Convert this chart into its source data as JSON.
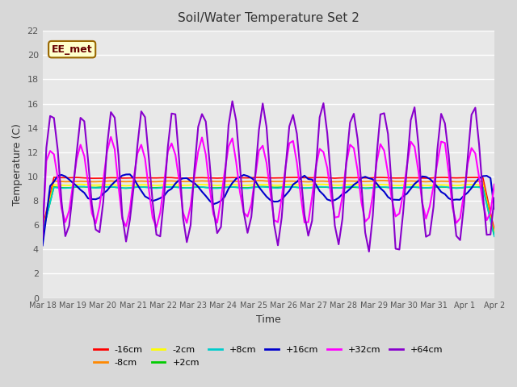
{
  "title": "Soil/Water Temperature Set 2",
  "xlabel": "Time",
  "ylabel": "Temperature (C)",
  "ylim": [
    0,
    22
  ],
  "yticks": [
    0,
    2,
    4,
    6,
    8,
    10,
    12,
    14,
    16,
    18,
    20,
    22
  ],
  "x_labels": [
    "Mar 18",
    "Mar 19",
    "Mar 20",
    "Mar 21",
    "Mar 22",
    "Mar 23",
    "Mar 24",
    "Mar 25",
    "Mar 26",
    "Mar 27",
    "Mar 28",
    "Mar 29",
    "Mar 30",
    "Mar 31",
    "Apr 1",
    "Apr 2"
  ],
  "annotation_text": "EE_met",
  "annotation_bg": "#ffffcc",
  "annotation_border": "#996600",
  "series": [
    {
      "label": "-16cm",
      "color": "#ff0000"
    },
    {
      "label": "-8cm",
      "color": "#ff8800"
    },
    {
      "label": "-2cm",
      "color": "#ffff00"
    },
    {
      "label": "+2cm",
      "color": "#00cc00"
    },
    {
      "label": "+8cm",
      "color": "#00cccc"
    },
    {
      "label": "+16cm",
      "color": "#0000cc"
    },
    {
      "label": "+32cm",
      "color": "#ff00ff"
    },
    {
      "label": "+64cm",
      "color": "#8800cc"
    }
  ],
  "linewidths": [
    1.2,
    1.2,
    1.2,
    1.2,
    1.2,
    1.5,
    1.5,
    1.5
  ],
  "n_days": 15,
  "pts_per_day": 8,
  "fig_bg": "#d8d8d8",
  "ax_bg": "#e8e8e8"
}
